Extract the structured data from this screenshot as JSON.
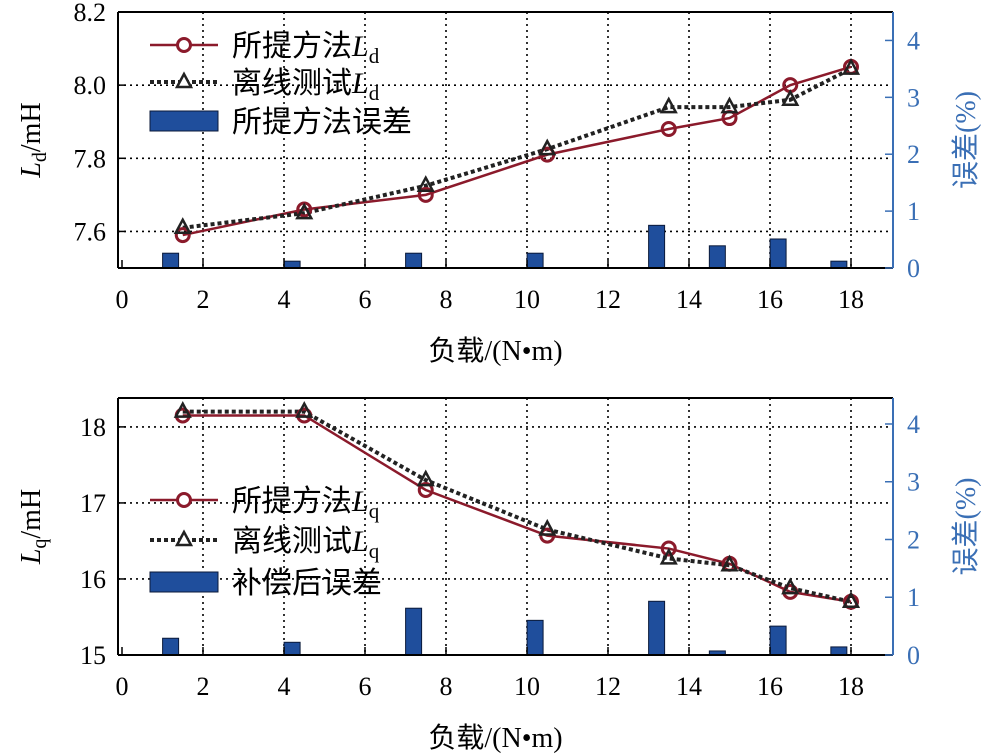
{
  "colors": {
    "method": "#8b1a2b",
    "offline": "#222222",
    "bar": "#1f4e9c",
    "right_axis": "#3a6fb5"
  },
  "chart_data": [
    {
      "type": "line+bar",
      "xlabel": "负载/(N•m)",
      "ylabel": {
        "main": "L",
        "sub": "d",
        "unit": "/mH"
      },
      "ylabel_right": "误差(%)",
      "xlim": [
        0,
        19
      ],
      "xticks": [
        0,
        2,
        4,
        6,
        8,
        10,
        12,
        14,
        16,
        18
      ],
      "ylim": [
        7.5,
        8.2
      ],
      "yticks": [
        "7.6",
        "7.8",
        "8.0",
        "8.2"
      ],
      "ylim_right": [
        0,
        4.5
      ],
      "yticks_right": [
        0,
        1,
        2,
        3,
        4
      ],
      "grid": true,
      "legend_position": "top-left",
      "x": [
        1.5,
        4.5,
        7.5,
        10.5,
        13.5,
        15,
        16.5,
        18
      ],
      "series": [
        {
          "name": "所提方法",
          "name_sub": "Ld",
          "legend_text": "所提方法",
          "legend_L": "L",
          "legend_sub": "d",
          "kind": "line",
          "marker": "circle",
          "values": [
            7.59,
            7.66,
            7.7,
            7.81,
            7.88,
            7.91,
            8.0,
            8.05
          ]
        },
        {
          "name": "离线测试",
          "legend_text": "离线测试",
          "legend_L": "L",
          "legend_sub": "d",
          "kind": "dotted-line",
          "marker": "triangle",
          "values": [
            7.61,
            7.65,
            7.725,
            7.825,
            7.94,
            7.94,
            7.96,
            8.045
          ]
        },
        {
          "name": "所提方法误差",
          "legend_text": "所提方法误差",
          "kind": "bar",
          "axis": "right",
          "x": [
            1.2,
            4.2,
            7.2,
            10.2,
            13.2,
            14.7,
            16.2,
            17.7
          ],
          "values": [
            0.26,
            0.12,
            0.26,
            0.26,
            0.75,
            0.39,
            0.51,
            0.12
          ]
        }
      ]
    },
    {
      "type": "line+bar",
      "xlabel": "负载/(N•m)",
      "ylabel": {
        "main": "L",
        "sub": "q",
        "unit": "/mH"
      },
      "ylabel_right": "误差(%)",
      "xlim": [
        0,
        19
      ],
      "xticks": [
        0,
        2,
        4,
        6,
        8,
        10,
        12,
        14,
        16,
        18
      ],
      "ylim": [
        15,
        18.38
      ],
      "yticks": [
        "15",
        "16",
        "17",
        "18"
      ],
      "ylim_right": [
        0,
        4.45
      ],
      "yticks_right": [
        0,
        1,
        2,
        3,
        4
      ],
      "grid": true,
      "legend_position": "center-left",
      "x": [
        1.5,
        4.5,
        7.5,
        10.5,
        13.5,
        15,
        16.5,
        18
      ],
      "series": [
        {
          "name": "所提方法",
          "legend_text": "所提方法",
          "legend_L": "L",
          "legend_sub": "q",
          "kind": "line",
          "marker": "circle",
          "values": [
            18.15,
            18.15,
            17.17,
            16.57,
            16.4,
            16.2,
            15.83,
            15.7
          ]
        },
        {
          "name": "离线测试",
          "legend_text": "离线测试",
          "legend_L": "L",
          "legend_sub": "q",
          "kind": "dotted-line",
          "marker": "triangle",
          "values": [
            18.2,
            18.2,
            17.3,
            16.65,
            16.27,
            16.18,
            15.88,
            15.7
          ]
        },
        {
          "name": "补偿后误差",
          "legend_text": "补偿后误差",
          "kind": "bar",
          "axis": "right",
          "x": [
            1.2,
            4.2,
            7.2,
            10.2,
            13.2,
            14.7,
            16.2,
            17.7
          ],
          "values": [
            0.29,
            0.22,
            0.81,
            0.6,
            0.93,
            0.07,
            0.5,
            0.14
          ]
        }
      ]
    }
  ]
}
